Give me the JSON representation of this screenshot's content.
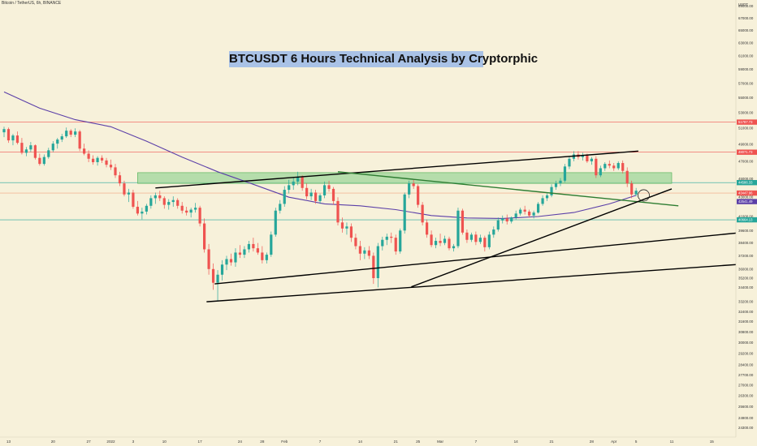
{
  "header": {
    "symbol": "Bitcoin / TetherUS, 6h, BINANCE",
    "title": "BTCUSDT 6 Hours Technical Analysis by Cryptorphic"
  },
  "chart_data": {
    "type": "candlestick",
    "symbol": "Bitcoin / TetherUS, 6h, BINANCE",
    "title": "BTCUSDT 6 Hours Technical Analysis by Cryptorphic",
    "y_scale": "log",
    "ylim": [
      23800,
      69500
    ],
    "xlim": [
      0,
      148
    ],
    "unit_label": "USDT",
    "y_ticks": [
      69000,
      67000,
      65000,
      63000,
      61000,
      59000,
      57000,
      55000,
      53000,
      51000,
      49000,
      47000,
      45000,
      43000,
      41000,
      39600,
      38400,
      37200,
      36000,
      35200,
      34400,
      33200,
      32400,
      31600,
      30800,
      30000,
      29200,
      28400,
      27700,
      27000,
      26300,
      25600,
      24900,
      24300
    ],
    "x_ticks": [
      {
        "label": "13",
        "x": 1
      },
      {
        "label": "20",
        "x": 11
      },
      {
        "label": "27",
        "x": 19
      },
      {
        "label": "2022",
        "x": 24
      },
      {
        "label": "3",
        "x": 29
      },
      {
        "label": "10",
        "x": 36
      },
      {
        "label": "17",
        "x": 44
      },
      {
        "label": "24",
        "x": 53
      },
      {
        "label": "28",
        "x": 58
      },
      {
        "label": "Feb",
        "x": 63
      },
      {
        "label": "7",
        "x": 71
      },
      {
        "label": "14",
        "x": 80
      },
      {
        "label": "21",
        "x": 88
      },
      {
        "label": "25",
        "x": 93
      },
      {
        "label": "Mar",
        "x": 98
      },
      {
        "label": "7",
        "x": 106
      },
      {
        "label": "14",
        "x": 115
      },
      {
        "label": "21",
        "x": 123
      },
      {
        "label": "28",
        "x": 132
      },
      {
        "label": "Apr",
        "x": 137
      },
      {
        "label": "5",
        "x": 142
      },
      {
        "label": "11",
        "x": 150
      },
      {
        "label": "15",
        "x": 159
      }
    ],
    "price_tags": [
      {
        "label": "51787.73",
        "price": 51787.73,
        "color": "#ef5350"
      },
      {
        "label": "48071.73",
        "price": 48071.73,
        "color": "#ef5350"
      },
      {
        "label": "44586.33",
        "price": 44586.33,
        "color": "#26a69a"
      },
      {
        "label": "43447.96",
        "price": 43447.96,
        "color": "#ef5350"
      },
      {
        "label": "42541.49",
        "price": 42541.49,
        "color": "#5b3fa8"
      },
      {
        "label": "40664.13",
        "price": 40664.13,
        "color": "#26a69a"
      }
    ],
    "horizontal_levels": [
      {
        "price": 51787.73,
        "color": "#ef5350"
      },
      {
        "price": 48071.73,
        "color": "#ef5350"
      },
      {
        "price": 44586.33,
        "color": "#26a69a"
      },
      {
        "price": 43447.96,
        "color": "#f2a47f"
      },
      {
        "price": 40664.13,
        "color": "#26a69a"
      }
    ],
    "zones": [
      {
        "x0": 30,
        "x1": 150,
        "top": 45700,
        "bottom": 44500,
        "color": "#9fd69b"
      }
    ],
    "moving_average": {
      "name": "",
      "color": "#5b3fa8",
      "points": [
        [
          0,
          55800
        ],
        [
          8,
          53600
        ],
        [
          16,
          52100
        ],
        [
          24,
          51200
        ],
        [
          32,
          49400
        ],
        [
          40,
          47500
        ],
        [
          48,
          45800
        ],
        [
          56,
          44400
        ],
        [
          64,
          43000
        ],
        [
          72,
          42300
        ],
        [
          80,
          42100
        ],
        [
          88,
          41700
        ],
        [
          96,
          41100
        ],
        [
          104,
          40850
        ],
        [
          112,
          40800
        ],
        [
          120,
          41000
        ],
        [
          128,
          41400
        ],
        [
          136,
          42300
        ],
        [
          142,
          43200
        ]
      ]
    },
    "trendlines": [
      {
        "x0": 34,
        "y0": 44000,
        "x1": 142.5,
        "y1": 48200,
        "color": "#000000"
      },
      {
        "x0": 75,
        "y0": 45800,
        "x1": 151.5,
        "y1": 42100,
        "color": "#2e7d32"
      },
      {
        "x0": 91.5,
        "y0": 34450,
        "x1": 150,
        "y1": 43900,
        "color": "#000000"
      },
      {
        "x0": 47.3,
        "y0": 34700,
        "x1": 168,
        "y1": 39500,
        "color": "#000000"
      },
      {
        "x0": 45.5,
        "y0": 33200,
        "x1": 168,
        "y1": 36500,
        "color": "#000000"
      }
    ],
    "marker": {
      "x": 143.7,
      "price": 43200
    },
    "candles": [
      [
        50500,
        51200,
        49900,
        50900
      ],
      [
        50900,
        51100,
        49200,
        49500
      ],
      [
        49500,
        50300,
        48900,
        50100
      ],
      [
        50100,
        50600,
        49000,
        49200
      ],
      [
        49200,
        49800,
        47800,
        48000
      ],
      [
        48000,
        48700,
        47600,
        48400
      ],
      [
        48400,
        49300,
        48100,
        48900
      ],
      [
        48900,
        49000,
        47200,
        47400
      ],
      [
        47400,
        47900,
        46500,
        46700
      ],
      [
        46700,
        47800,
        46500,
        47500
      ],
      [
        47500,
        48600,
        47300,
        48300
      ],
      [
        48300,
        49400,
        48100,
        49100
      ],
      [
        49100,
        49800,
        48500,
        49600
      ],
      [
        49600,
        50300,
        49300,
        50000
      ],
      [
        50000,
        51100,
        49800,
        50700
      ],
      [
        50700,
        50900,
        49900,
        50200
      ],
      [
        50200,
        51000,
        49900,
        50600
      ],
      [
        50600,
        50800,
        48200,
        48500
      ],
      [
        48500,
        49100,
        47700,
        47900
      ],
      [
        47900,
        48300,
        46900,
        47300
      ],
      [
        47300,
        47700,
        46600,
        46900
      ],
      [
        46900,
        47600,
        46500,
        47400
      ],
      [
        47400,
        47700,
        46800,
        47100
      ],
      [
        47100,
        47400,
        46300,
        46600
      ],
      [
        46600,
        47200,
        46000,
        46300
      ],
      [
        46300,
        46700,
        45100,
        45400
      ],
      [
        45400,
        45800,
        44200,
        44500
      ],
      [
        44500,
        44800,
        43100,
        43300
      ],
      [
        43300,
        43900,
        42500,
        43500
      ],
      [
        43500,
        43800,
        41800,
        42000
      ],
      [
        42000,
        42600,
        41100,
        41300
      ],
      [
        41300,
        41900,
        40700,
        41500
      ],
      [
        41500,
        42300,
        41200,
        42100
      ],
      [
        42100,
        43200,
        41800,
        42900
      ],
      [
        42900,
        43500,
        42300,
        43200
      ],
      [
        43200,
        43700,
        42600,
        42900
      ],
      [
        42900,
        43100,
        41800,
        42200
      ],
      [
        42200,
        42800,
        41700,
        42500
      ],
      [
        42500,
        43100,
        42000,
        42700
      ],
      [
        42700,
        42900,
        41800,
        42100
      ],
      [
        42100,
        42500,
        41300,
        41600
      ],
      [
        41600,
        42000,
        41100,
        41400
      ],
      [
        41400,
        41900,
        40900,
        41700
      ],
      [
        41700,
        42400,
        41400,
        41900
      ],
      [
        41900,
        42100,
        40000,
        40300
      ],
      [
        40300,
        40800,
        37500,
        37800
      ],
      [
        37800,
        38300,
        35500,
        36000
      ],
      [
        36000,
        36500,
        34200,
        34800
      ],
      [
        34800,
        35900,
        33300,
        35500
      ],
      [
        35500,
        36800,
        35000,
        36400
      ],
      [
        36400,
        37200,
        35900,
        36900
      ],
      [
        36900,
        37400,
        36300,
        36600
      ],
      [
        36600,
        37900,
        36200,
        37500
      ],
      [
        37500,
        38200,
        37000,
        37300
      ],
      [
        37300,
        38100,
        37000,
        37800
      ],
      [
        37800,
        38600,
        37500,
        38300
      ],
      [
        38300,
        38900,
        37600,
        37900
      ],
      [
        37900,
        38400,
        37300,
        37500
      ],
      [
        37500,
        38100,
        36500,
        36800
      ],
      [
        36800,
        37500,
        36500,
        37300
      ],
      [
        37300,
        39500,
        37100,
        39200
      ],
      [
        39200,
        41900,
        39000,
        41600
      ],
      [
        41600,
        42700,
        41300,
        42300
      ],
      [
        42300,
        44200,
        42000,
        43800
      ],
      [
        43800,
        44900,
        43400,
        44300
      ],
      [
        44300,
        45100,
        43800,
        44700
      ],
      [
        44700,
        45800,
        44300,
        45200
      ],
      [
        45200,
        45400,
        43700,
        44000
      ],
      [
        44000,
        44500,
        42800,
        43100
      ],
      [
        43100,
        43900,
        42700,
        43500
      ],
      [
        43500,
        43800,
        42300,
        42600
      ],
      [
        42600,
        43400,
        42300,
        43200
      ],
      [
        43200,
        44700,
        42900,
        44300
      ],
      [
        44300,
        44800,
        43600,
        43900
      ],
      [
        43900,
        44100,
        42200,
        42600
      ],
      [
        42600,
        43000,
        40100,
        40400
      ],
      [
        40400,
        40900,
        39400,
        39800
      ],
      [
        39800,
        40400,
        39200,
        40000
      ],
      [
        40000,
        40300,
        38500,
        38900
      ],
      [
        38900,
        39300,
        37800,
        38100
      ],
      [
        38100,
        38600,
        36800,
        37400
      ],
      [
        37400,
        38000,
        36900,
        37700
      ],
      [
        37700,
        38100,
        36900,
        37200
      ],
      [
        37200,
        37500,
        34700,
        35200
      ],
      [
        35200,
        38400,
        34400,
        38100
      ],
      [
        38100,
        39000,
        37700,
        38700
      ],
      [
        38700,
        39300,
        38200,
        39000
      ],
      [
        39000,
        39400,
        38400,
        38900
      ],
      [
        38900,
        39200,
        37300,
        37600
      ],
      [
        37600,
        39800,
        37400,
        39600
      ],
      [
        39600,
        43500,
        39300,
        43300
      ],
      [
        43300,
        44800,
        42900,
        44500
      ],
      [
        44500,
        44900,
        43900,
        44200
      ],
      [
        44200,
        44400,
        41900,
        42200
      ],
      [
        42200,
        42500,
        40100,
        40400
      ],
      [
        40400,
        40700,
        38900,
        39200
      ],
      [
        39200,
        39600,
        38000,
        38200
      ],
      [
        38200,
        38900,
        37900,
        38600
      ],
      [
        38600,
        39300,
        38100,
        38400
      ],
      [
        38400,
        39100,
        38200,
        38800
      ],
      [
        38800,
        39000,
        37700,
        37900
      ],
      [
        37900,
        38300,
        37600,
        38100
      ],
      [
        38100,
        41900,
        37900,
        41600
      ],
      [
        41600,
        41800,
        39200,
        39400
      ],
      [
        39400,
        39700,
        38400,
        38700
      ],
      [
        38700,
        39400,
        38500,
        39200
      ],
      [
        39200,
        39500,
        38200,
        38500
      ],
      [
        38500,
        39200,
        38300,
        38900
      ],
      [
        38900,
        39100,
        37600,
        38000
      ],
      [
        38000,
        39500,
        37800,
        39200
      ],
      [
        39200,
        40000,
        38900,
        39700
      ],
      [
        39700,
        40900,
        39500,
        40600
      ],
      [
        40600,
        41100,
        40300,
        40800
      ],
      [
        40800,
        41200,
        40200,
        40500
      ],
      [
        40500,
        41000,
        40300,
        40900
      ],
      [
        40900,
        41600,
        40700,
        41300
      ],
      [
        41300,
        41900,
        41100,
        41700
      ],
      [
        41700,
        42100,
        41200,
        41500
      ],
      [
        41500,
        41700,
        40900,
        41100
      ],
      [
        41100,
        41600,
        40800,
        41400
      ],
      [
        41400,
        42500,
        41300,
        42300
      ],
      [
        42300,
        43200,
        42100,
        42900
      ],
      [
        42900,
        43400,
        42600,
        43200
      ],
      [
        43200,
        44400,
        43000,
        44100
      ],
      [
        44100,
        44800,
        43800,
        44500
      ],
      [
        44500,
        45100,
        44200,
        44800
      ],
      [
        44800,
        46700,
        44600,
        46400
      ],
      [
        46400,
        47600,
        46100,
        47300
      ],
      [
        47300,
        48200,
        47000,
        47800
      ],
      [
        47800,
        48200,
        47200,
        47500
      ],
      [
        47500,
        48000,
        47100,
        47700
      ],
      [
        47700,
        47900,
        46800,
        47000
      ],
      [
        47000,
        47500,
        46600,
        47300
      ],
      [
        47300,
        47600,
        45100,
        45400
      ],
      [
        45400,
        46500,
        45200,
        46200
      ],
      [
        46200,
        46900,
        45900,
        46700
      ],
      [
        46700,
        47100,
        46200,
        46500
      ],
      [
        46500,
        46800,
        45900,
        46200
      ],
      [
        46200,
        47000,
        46000,
        46800
      ],
      [
        46800,
        47100,
        45600,
        45900
      ],
      [
        45900,
        46300,
        44100,
        44500
      ],
      [
        44500,
        44800,
        42900,
        43300
      ],
      [
        43300,
        44000,
        43100,
        43700
      ]
    ]
  }
}
